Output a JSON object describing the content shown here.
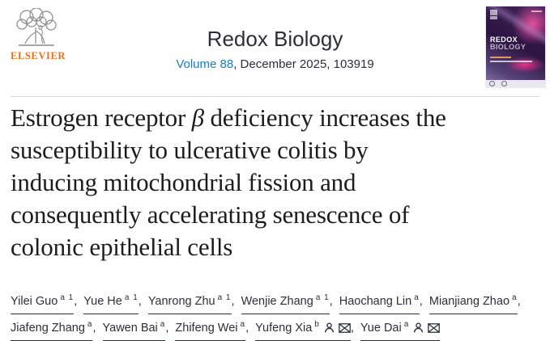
{
  "banner": {
    "publisher_wordmark": "ELSEVIER",
    "journal_title": "Redox Biology",
    "volume_link_text": "Volume 88",
    "issue_text": ", December 2025, 103919"
  },
  "cover": {
    "title_line1": "REDOX",
    "title_line2": "BIOLOGY"
  },
  "article": {
    "title": {
      "l1_pre": "Estrogen receptor ",
      "beta": "β",
      "l1_post": " deficiency increases the",
      "l2": "susceptibility to ulcerative colitis by",
      "l3": "inducing mitochondrial fission and",
      "l4": "consequently accelerating senescence of",
      "l5": "colonic epithelial cells"
    }
  },
  "authors": {
    "separator": ", ",
    "list": [
      {
        "name": "Yilei Guo",
        "sup": "a 1",
        "corresponding": false
      },
      {
        "name": "Yue He",
        "sup": "a 1",
        "corresponding": false
      },
      {
        "name": "Yanrong Zhu",
        "sup": "a 1",
        "corresponding": false
      },
      {
        "name": "Wenjie Zhang",
        "sup": "a 1",
        "corresponding": false
      },
      {
        "name": "Haochang Lin",
        "sup": "a",
        "corresponding": false
      },
      {
        "name": "Mianjiang Zhao",
        "sup": "a",
        "corresponding": false
      },
      {
        "name": "Jiafeng Zhang",
        "sup": "a",
        "corresponding": false
      },
      {
        "name": "Yawen Bai",
        "sup": "a",
        "corresponding": false
      },
      {
        "name": "Zhifeng Wei",
        "sup": "a",
        "corresponding": false
      },
      {
        "name": "Yufeng Xia",
        "sup": "b",
        "corresponding": true
      },
      {
        "name": "Yue Dai",
        "sup": "a",
        "corresponding": true
      }
    ]
  },
  "colors": {
    "elsevier_orange": "#e9711c",
    "link_blue": "#1a7bbd",
    "body_text": "#2e2e38",
    "title_text": "#1c1c1c",
    "cover_purple": "#2d1442",
    "cover_magenta": "#ee50a0"
  }
}
